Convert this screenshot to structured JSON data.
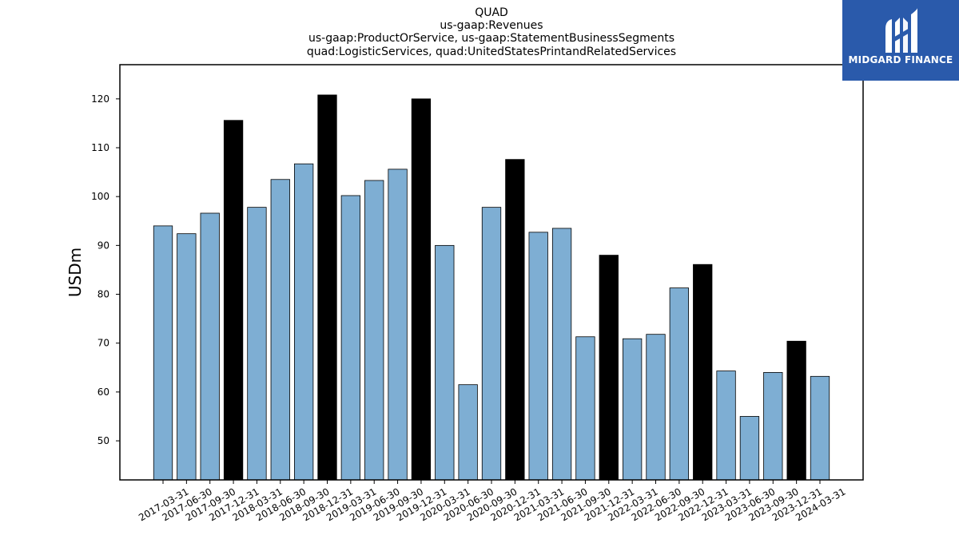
{
  "chart_data": {
    "type": "bar",
    "title_lines": [
      "QUAD",
      "us-gaap:Revenues",
      "us-gaap:ProductOrService, us-gaap:StatementBusinessSegments",
      "quad:LogisticServices, quad:UnitedStatesPrintandRelatedServices"
    ],
    "ylabel": "USDm",
    "xlabel": "",
    "ylim": [
      42,
      127
    ],
    "yticks": [
      50,
      60,
      70,
      80,
      90,
      100,
      110,
      120
    ],
    "categories": [
      "2017-03-31",
      "2017-06-30",
      "2017-09-30",
      "2017-12-31",
      "2018-03-31",
      "2018-06-30",
      "2018-09-30",
      "2018-12-31",
      "2019-03-31",
      "2019-06-30",
      "2019-09-30",
      "2019-12-31",
      "2020-03-31",
      "2020-06-30",
      "2020-09-30",
      "2020-12-31",
      "2021-03-31",
      "2021-06-30",
      "2021-09-30",
      "2021-12-31",
      "2022-03-31",
      "2022-06-30",
      "2022-09-30",
      "2022-12-31",
      "2023-03-31",
      "2023-06-30",
      "2023-09-30",
      "2023-12-31",
      "2024-03-31"
    ],
    "values": [
      94.0,
      92.4,
      96.6,
      115.6,
      97.8,
      103.5,
      106.7,
      120.8,
      100.2,
      103.3,
      105.6,
      120.0,
      90.0,
      61.5,
      97.8,
      107.6,
      92.7,
      93.5,
      71.3,
      88.0,
      70.9,
      71.8,
      81.3,
      86.1,
      64.3,
      55.0,
      64.0,
      70.4,
      63.2
    ],
    "highlight_indices": [
      3,
      7,
      11,
      15,
      19,
      23,
      27
    ],
    "colors": {
      "bar": "#7eaed3",
      "highlight": "#000000",
      "edge": "#000000"
    },
    "grid": false,
    "legend": "none"
  },
  "logo": {
    "text": "MIDGARD FINANCE",
    "background": "#2a5aab",
    "icon": "midgard-logo-icon"
  }
}
